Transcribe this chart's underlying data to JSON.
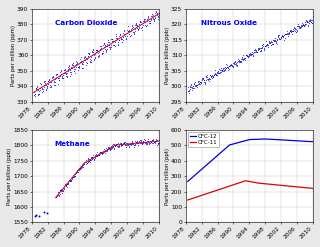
{
  "background_color": "#e8e8e8",
  "subplot_bg": "#ffffff",
  "grid_color": "#cccccc",
  "co2": {
    "title": "Carbon Dioxide",
    "ylabel": "Parts per million (ppm)",
    "xlim": [
      1978,
      2010
    ],
    "ylim": [
      330,
      390
    ],
    "yticks": [
      330,
      340,
      350,
      360,
      370,
      380,
      390
    ],
    "xticks": [
      1978,
      1982,
      1986,
      1990,
      1994,
      1998,
      2002,
      2006,
      2010
    ],
    "xtick_labels": [
      "1978",
      "1982",
      "1986",
      "1990",
      "1994",
      "1998",
      "2002",
      "2006",
      "2010"
    ],
    "data_color_scatter": "#0000dd",
    "data_color_trend": "#dd0000"
  },
  "n2o": {
    "title": "Nitrous Oxide",
    "ylabel": "Parts per billion (ppb)",
    "xlim": [
      1978,
      2010
    ],
    "ylim": [
      295,
      325
    ],
    "yticks": [
      295,
      300,
      305,
      310,
      315,
      320,
      325
    ],
    "xticks": [
      1978,
      1982,
      1986,
      1990,
      1994,
      1998,
      2002,
      2006,
      2010
    ],
    "xtick_labels": [
      "1978",
      "1982",
      "1986",
      "1990",
      "1994",
      "1998",
      "2002",
      "2006",
      "2010"
    ],
    "data_color_scatter": "#0000dd",
    "data_color_trend": "#dd0000"
  },
  "ch4": {
    "title": "Methane",
    "ylabel": "Parts per billion (ppb)",
    "xlim": [
      1978,
      2010
    ],
    "ylim": [
      1550,
      1850
    ],
    "yticks": [
      1550,
      1600,
      1650,
      1700,
      1750,
      1800,
      1850
    ],
    "xticks": [
      1978,
      1982,
      1986,
      1990,
      1994,
      1998,
      2002,
      2006,
      2010
    ],
    "xtick_labels": [
      "1978",
      "1982",
      "1986",
      "1990",
      "1994",
      "1998",
      "2002",
      "2006",
      "2010"
    ],
    "data_color_scatter": "#0000dd",
    "data_color_trend": "#dd0000"
  },
  "cfc": {
    "ylabel": "Parts per trillion (ppt)",
    "xlim": [
      1978,
      2010
    ],
    "ylim": [
      0,
      600
    ],
    "yticks": [
      0,
      100,
      200,
      300,
      400,
      500,
      600
    ],
    "xticks": [
      1978,
      1982,
      1986,
      1990,
      1994,
      1998,
      2002,
      2006,
      2010
    ],
    "xtick_labels": [
      "1978",
      "1982",
      "1986",
      "1990",
      "1994",
      "1998",
      "2002",
      "2006",
      "2010"
    ],
    "cfc12_color": "#0000dd",
    "cfc11_color": "#dd0000",
    "cfc12_label": "CFC-12",
    "cfc11_label": "CFC-11"
  }
}
